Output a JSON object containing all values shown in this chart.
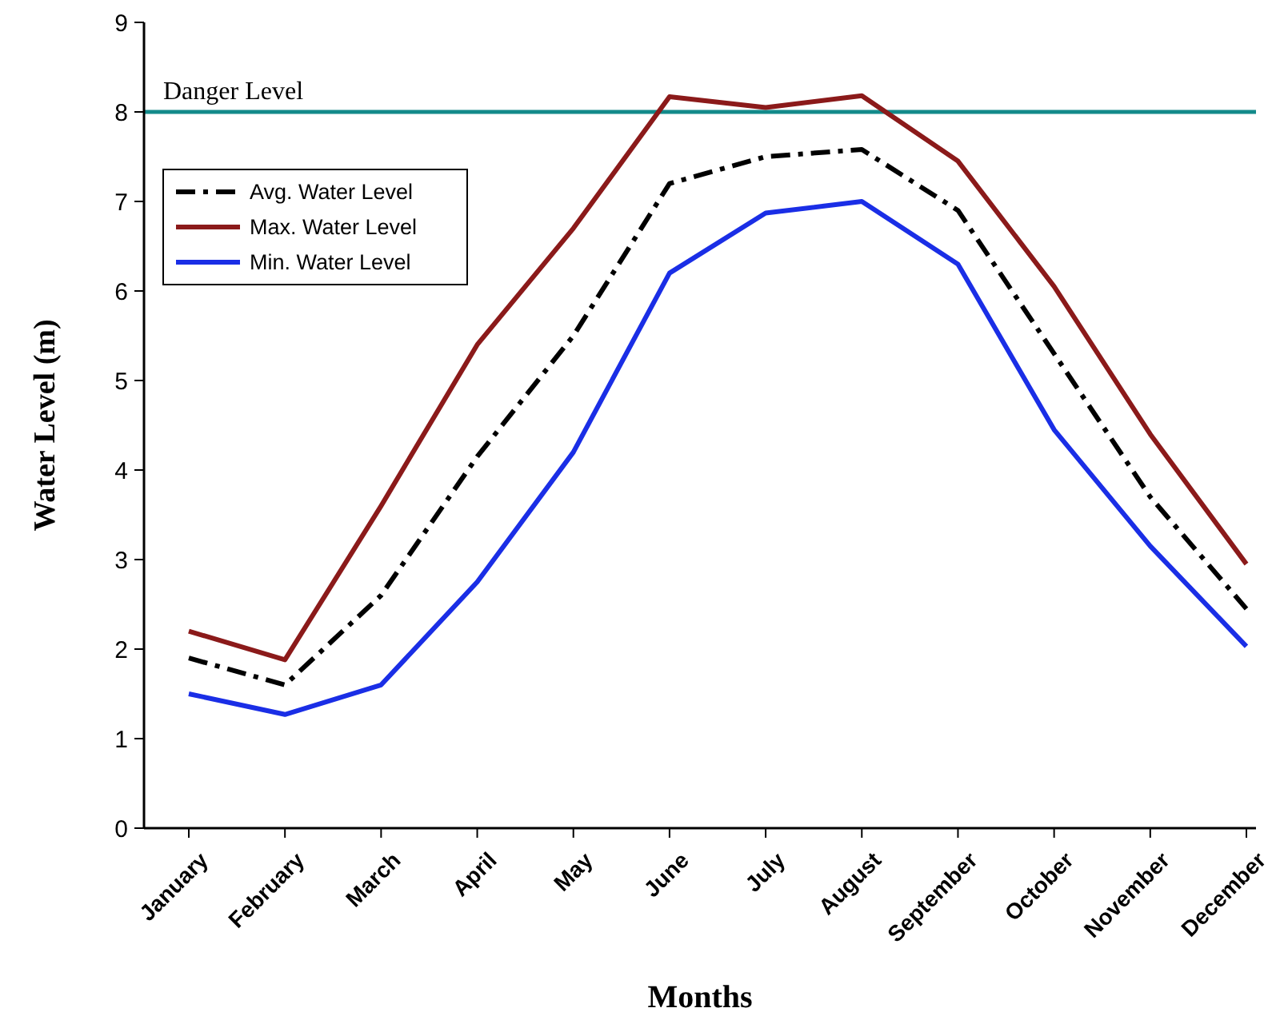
{
  "chart_data": {
    "type": "line",
    "xlabel": "Months",
    "ylabel": "Water Level (m)",
    "categories": [
      "January",
      "February",
      "March",
      "April",
      "May",
      "June",
      "July",
      "August",
      "September",
      "October",
      "November",
      "December"
    ],
    "series": [
      {
        "name": "Avg. Water Level",
        "color": "#000000",
        "line_style": "dashed",
        "values": [
          1.9,
          1.6,
          2.6,
          4.15,
          5.5,
          7.2,
          7.5,
          7.58,
          6.9,
          5.3,
          3.7,
          2.45
        ]
      },
      {
        "name": "Max. Water Level",
        "color": "#8b1a1a",
        "line_style": "solid",
        "values": [
          2.2,
          1.88,
          3.6,
          5.4,
          6.7,
          8.17,
          8.05,
          8.18,
          7.45,
          6.05,
          4.4,
          2.95
        ]
      },
      {
        "name": "Min. Water Level",
        "color": "#1a2ee6",
        "line_style": "solid",
        "values": [
          1.5,
          1.27,
          1.6,
          2.75,
          4.2,
          6.2,
          6.87,
          7.0,
          6.3,
          4.45,
          3.15,
          2.03
        ]
      }
    ],
    "ylim": [
      0,
      9
    ],
    "yticks": [
      0,
      1,
      2,
      3,
      4,
      5,
      6,
      7,
      8,
      9
    ],
    "ref_lines": [
      {
        "axis": "y",
        "value": 8,
        "label": "Danger Level",
        "color": "#138a8a"
      }
    ],
    "legend": "top left",
    "grid": false,
    "marker": "none"
  }
}
